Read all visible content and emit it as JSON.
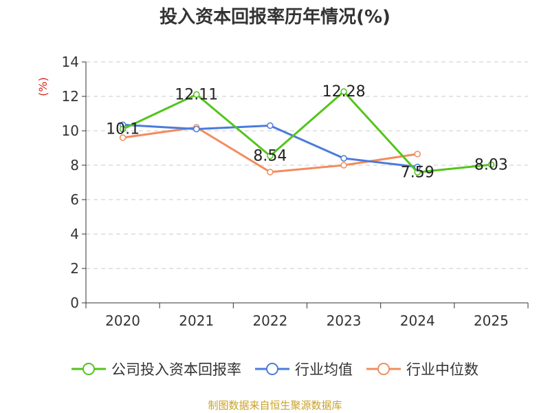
{
  "chart_data": {
    "type": "line",
    "title": "投入资本回报率历年情况(%)",
    "ylabel": "(%)",
    "xlabel": "",
    "categories": [
      "2020",
      "2021",
      "2022",
      "2023",
      "2024",
      "2025"
    ],
    "ylim": [
      0,
      14
    ],
    "yticks": [
      0,
      2,
      4,
      6,
      8,
      10,
      12,
      14
    ],
    "grid": true,
    "legend_position": "bottom",
    "series": [
      {
        "name": "公司投入资本回报率",
        "color": "#52c41a",
        "values": [
          10.1,
          12.11,
          8.54,
          12.28,
          7.59,
          8.03
        ],
        "labels": [
          "10.1",
          "12.11",
          "8.54",
          "12.28",
          "7.59",
          "8.03"
        ]
      },
      {
        "name": "行业均值",
        "color": "#4a7bdc",
        "values": [
          10.35,
          10.1,
          10.3,
          8.4,
          7.9,
          null
        ]
      },
      {
        "name": "行业中位数",
        "color": "#f28c5c",
        "values": [
          9.6,
          10.2,
          7.6,
          8.0,
          8.65,
          null
        ]
      }
    ]
  },
  "source_note": "制图数据来自恒生聚源数据库"
}
